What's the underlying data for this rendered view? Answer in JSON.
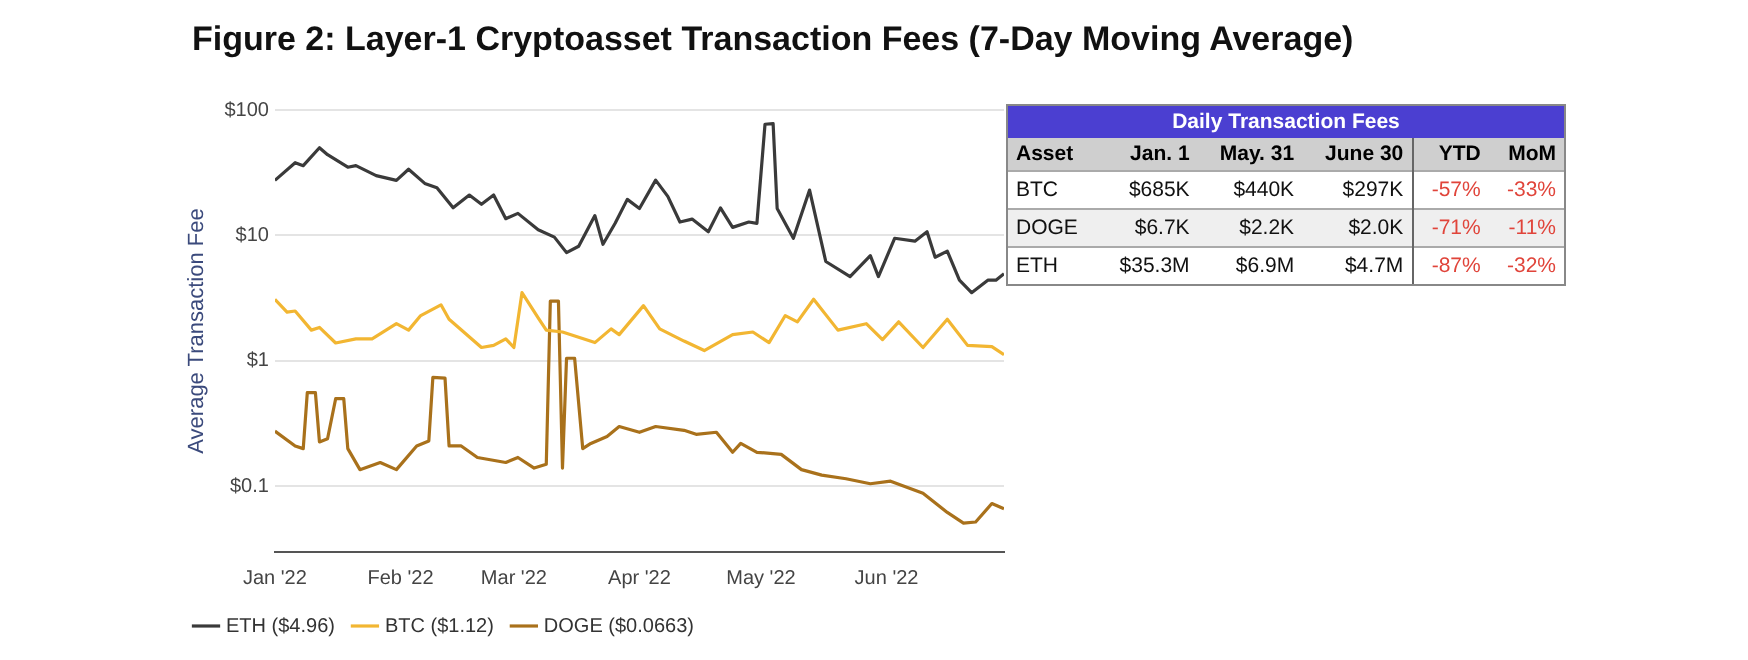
{
  "chart_data": [
    {
      "type": "line",
      "title": "Figure 2: Layer-1 Cryptoasset Transaction Fees (7-Day Moving Average)",
      "ylabel": "Average Transaction Fee",
      "log": "y",
      "grid": "y",
      "legend": "bottom",
      "ylim": [
        0.03,
        100
      ],
      "yticks": [
        {
          "value": 100,
          "label": "$100"
        },
        {
          "value": 10,
          "label": "$10"
        },
        {
          "value": 1,
          "label": "$1"
        },
        {
          "value": 0.1,
          "label": "$0.1"
        }
      ],
      "xlim": [
        "2022-01-01",
        "2022-06-30"
      ],
      "xticks": [
        {
          "value": "2022-01-01",
          "label": "Jan '22"
        },
        {
          "value": "2022-02-01",
          "label": "Feb '22"
        },
        {
          "value": "2022-03-01",
          "label": "Mar '22"
        },
        {
          "value": "2022-04-01",
          "label": "Apr '22"
        },
        {
          "value": "2022-05-01",
          "label": "May '22"
        },
        {
          "value": "2022-06-01",
          "label": "Jun '22"
        }
      ],
      "series": [
        {
          "name": "ETH ($4.96)",
          "color": "#3a3a3a",
          "x": [
            "2022-01-01",
            "2022-01-06",
            "2022-01-08",
            "2022-01-12",
            "2022-01-14",
            "2022-01-19",
            "2022-01-21",
            "2022-01-26",
            "2022-01-31",
            "2022-02-03",
            "2022-02-07",
            "2022-02-10",
            "2022-02-14",
            "2022-02-18",
            "2022-02-21",
            "2022-02-24",
            "2022-02-27",
            "2022-03-02",
            "2022-03-07",
            "2022-03-11",
            "2022-03-14",
            "2022-03-17",
            "2022-03-21",
            "2022-03-23",
            "2022-03-26",
            "2022-03-29",
            "2022-04-01",
            "2022-04-05",
            "2022-04-08",
            "2022-04-11",
            "2022-04-14",
            "2022-04-18",
            "2022-04-21",
            "2022-04-24",
            "2022-04-28",
            "2022-04-30",
            "2022-05-02",
            "2022-05-04",
            "2022-05-05",
            "2022-05-09",
            "2022-05-13",
            "2022-05-17",
            "2022-05-23",
            "2022-05-28",
            "2022-05-30",
            "2022-06-03",
            "2022-06-08",
            "2022-06-11",
            "2022-06-13",
            "2022-06-16",
            "2022-06-19",
            "2022-06-22",
            "2022-06-26",
            "2022-06-28",
            "2022-06-30"
          ],
          "values": [
            27.5,
            38,
            36,
            50,
            44,
            35,
            36,
            30,
            27.5,
            33.7,
            26,
            24,
            16.6,
            21,
            17.7,
            21,
            13.6,
            15,
            11.1,
            9.7,
            7.3,
            8.2,
            14.4,
            8.5,
            12.5,
            19.4,
            16.4,
            27.6,
            20.5,
            12.8,
            13.5,
            10.7,
            16.6,
            11.6,
            12.8,
            12.5,
            77,
            78,
            16.4,
            9.5,
            23,
            6.2,
            4.7,
            6.9,
            4.7,
            9.5,
            9,
            10.7,
            6.7,
            7.5,
            4.4,
            3.5,
            4.4,
            4.4,
            4.96
          ]
        },
        {
          "name": "BTC ($1.12)",
          "color": "#f2b632",
          "x": [
            "2022-01-01",
            "2022-01-04",
            "2022-01-06",
            "2022-01-10",
            "2022-01-12",
            "2022-01-16",
            "2022-01-21",
            "2022-01-25",
            "2022-01-31",
            "2022-02-03",
            "2022-02-06",
            "2022-02-11",
            "2022-02-13",
            "2022-02-21",
            "2022-02-24",
            "2022-02-27",
            "2022-03-01",
            "2022-03-03",
            "2022-03-07",
            "2022-03-09",
            "2022-03-13",
            "2022-03-21",
            "2022-03-25",
            "2022-03-27",
            "2022-04-02",
            "2022-04-06",
            "2022-04-12",
            "2022-04-17",
            "2022-04-24",
            "2022-04-29",
            "2022-05-03",
            "2022-05-07",
            "2022-05-10",
            "2022-05-14",
            "2022-05-20",
            "2022-05-27",
            "2022-05-31",
            "2022-06-04",
            "2022-06-10",
            "2022-06-16",
            "2022-06-21",
            "2022-06-27",
            "2022-06-30"
          ],
          "values": [
            3.1,
            2.45,
            2.5,
            1.76,
            1.85,
            1.39,
            1.5,
            1.5,
            1.98,
            1.76,
            2.3,
            2.8,
            2.15,
            1.28,
            1.33,
            1.5,
            1.28,
            3.5,
            2.2,
            1.76,
            1.7,
            1.4,
            1.8,
            1.62,
            2.76,
            1.8,
            1.44,
            1.21,
            1.62,
            1.7,
            1.4,
            2.3,
            2.05,
            3.1,
            1.76,
            1.98,
            1.48,
            2.05,
            1.28,
            2.15,
            1.33,
            1.3,
            1.12
          ]
        },
        {
          "name": "DOGE ($0.0663)",
          "color": "#a9711b",
          "x": [
            "2022-01-01",
            "2022-01-06",
            "2022-01-08",
            "2022-01-09",
            "2022-01-11",
            "2022-01-12",
            "2022-01-14",
            "2022-01-16",
            "2022-01-18",
            "2022-01-19",
            "2022-01-22",
            "2022-01-27",
            "2022-01-31",
            "2022-02-05",
            "2022-02-08",
            "2022-02-09",
            "2022-02-12",
            "2022-02-13",
            "2022-02-16",
            "2022-02-20",
            "2022-02-27",
            "2022-03-02",
            "2022-03-06",
            "2022-03-09",
            "2022-03-10",
            "2022-03-12",
            "2022-03-13",
            "2022-03-14",
            "2022-03-16",
            "2022-03-18",
            "2022-03-20",
            "2022-03-24",
            "2022-03-27",
            "2022-04-01",
            "2022-04-05",
            "2022-04-12",
            "2022-04-15",
            "2022-04-20",
            "2022-04-24",
            "2022-04-26",
            "2022-04-30",
            "2022-05-06",
            "2022-05-11",
            "2022-05-16",
            "2022-05-22",
            "2022-05-28",
            "2022-06-02",
            "2022-06-10",
            "2022-06-16",
            "2022-06-20",
            "2022-06-23",
            "2022-06-27",
            "2022-06-30"
          ],
          "values": [
            0.276,
            0.21,
            0.2,
            0.56,
            0.56,
            0.226,
            0.24,
            0.5,
            0.5,
            0.2,
            0.136,
            0.155,
            0.136,
            0.21,
            0.23,
            0.74,
            0.73,
            0.21,
            0.21,
            0.17,
            0.155,
            0.17,
            0.14,
            0.15,
            3,
            3,
            0.14,
            1.05,
            1.05,
            0.2,
            0.22,
            0.25,
            0.3,
            0.27,
            0.3,
            0.28,
            0.26,
            0.27,
            0.187,
            0.22,
            0.187,
            0.18,
            0.136,
            0.123,
            0.115,
            0.105,
            0.11,
            0.088,
            0.062,
            0.051,
            0.052,
            0.073,
            0.0663
          ]
        }
      ]
    },
    {
      "type": "other",
      "title": "Daily Transaction Fees",
      "categories": [
        "Asset",
        "Jan. 1",
        "May. 31",
        "June 30",
        "YTD",
        "MoM"
      ],
      "colors": [
        null,
        null,
        null,
        null,
        "#e0443a",
        "#e0443a"
      ],
      "cell_labels": [
        [
          "BTC",
          "$685K",
          "$440K",
          "$297K",
          "-57%",
          "-33%"
        ],
        [
          "DOGE",
          "$6.7K",
          "$2.2K",
          "$2.0K",
          "-71%",
          "-11%"
        ],
        [
          "ETH",
          "$35.3M",
          "$6.9M",
          "$4.7M",
          "-87%",
          "-32%"
        ]
      ]
    }
  ]
}
